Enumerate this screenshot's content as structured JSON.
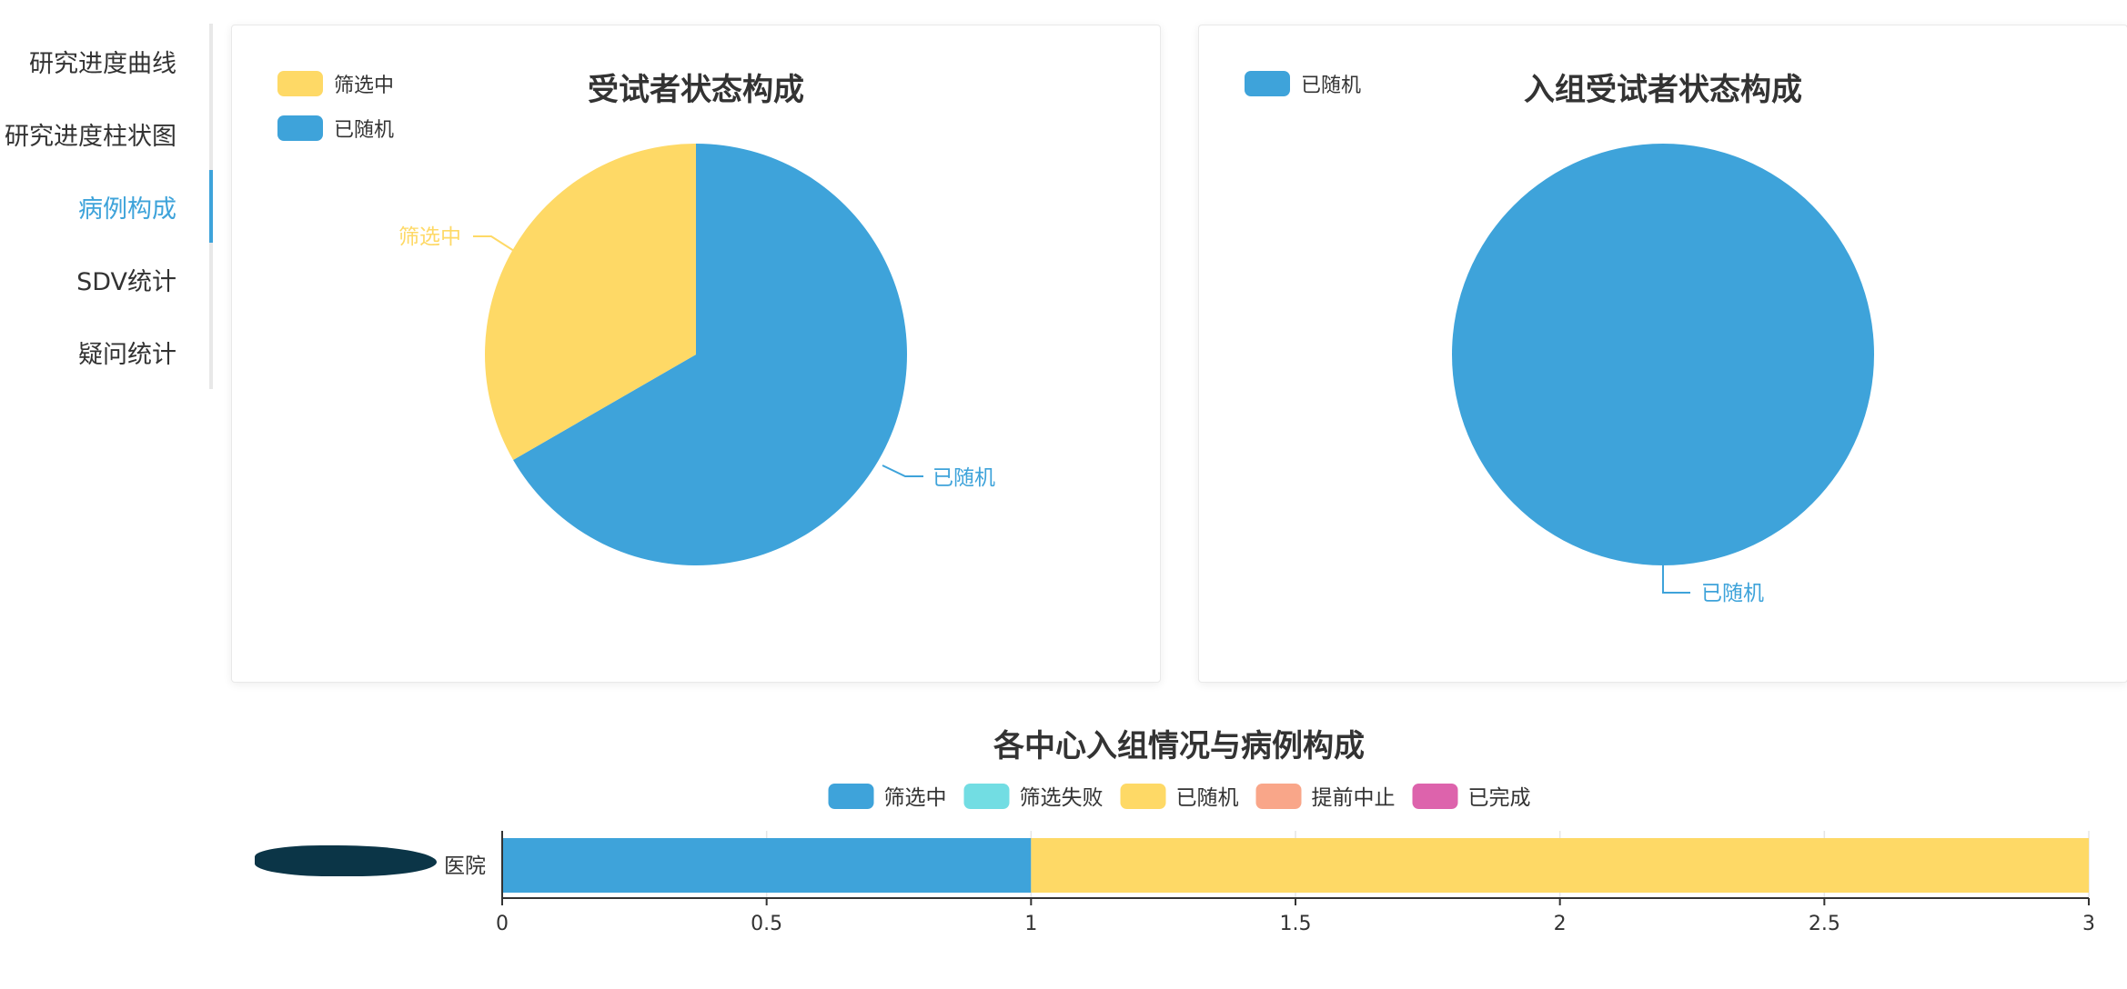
{
  "sidebar": {
    "items": [
      {
        "label": "研究进度曲线",
        "active": false
      },
      {
        "label": "研究进度柱状图",
        "active": false
      },
      {
        "label": "病例构成",
        "active": true
      },
      {
        "label": "SDV统计",
        "active": false
      },
      {
        "label": "疑问统计",
        "active": false
      }
    ]
  },
  "colors": {
    "accent": "#3ea3da",
    "blue": "#3ea3da",
    "cyan": "#72dde3",
    "yellow": "#fed966",
    "salmon": "#f9a689",
    "pink": "#dd63ac"
  },
  "chart_data": [
    {
      "type": "pie",
      "title": "受试者状态构成",
      "legend": [
        "筛选中",
        "已随机"
      ],
      "legend_position": "top-left",
      "slices": [
        {
          "label": "筛选中",
          "value": 1,
          "color": "#fed966"
        },
        {
          "label": "已随机",
          "value": 2,
          "color": "#3ea3da"
        }
      ]
    },
    {
      "type": "pie",
      "title": "入组受试者状态构成",
      "legend": [
        "已随机"
      ],
      "legend_position": "top-left",
      "slices": [
        {
          "label": "已随机",
          "value": 2,
          "color": "#3ea3da"
        }
      ]
    },
    {
      "type": "bar",
      "orientation": "horizontal",
      "stacked": true,
      "title": "各中心入组情况与病例构成",
      "legend_position": "top",
      "categories": [
        "医院"
      ],
      "xlim": [
        0,
        3
      ],
      "xticks": [
        "0",
        "0.5",
        "1",
        "1.5",
        "2",
        "2.5",
        "3"
      ],
      "series": [
        {
          "name": "筛选中",
          "values": [
            1
          ],
          "color": "#3ea3da"
        },
        {
          "name": "筛选失败",
          "values": [
            0
          ],
          "color": "#72dde3"
        },
        {
          "name": "已随机",
          "values": [
            2
          ],
          "color": "#fed966"
        },
        {
          "name": "提前中止",
          "values": [
            0
          ],
          "color": "#f9a689"
        },
        {
          "name": "已完成",
          "values": [
            0
          ],
          "color": "#dd63ac"
        }
      ]
    }
  ]
}
